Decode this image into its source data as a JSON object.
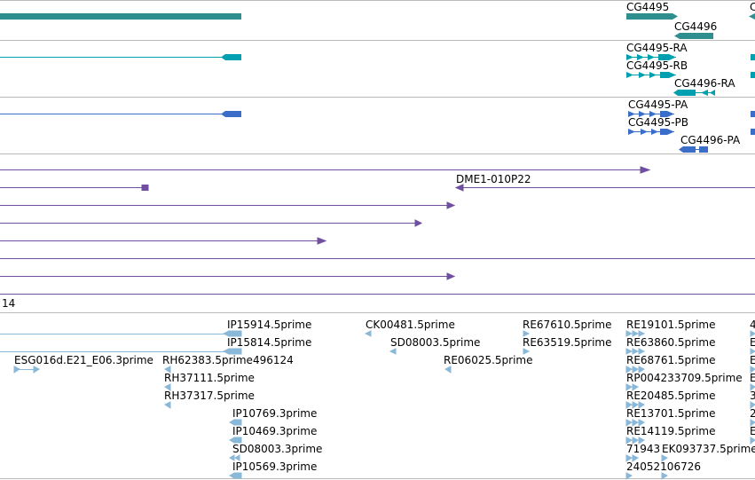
{
  "colors": {
    "background": "#ffffff",
    "divider": "#bbbbbb",
    "gene": "#2f8f8f",
    "transcript": "#00a0b0",
    "protein": "#3a6ec8",
    "clone": "#6f4fa0",
    "est": "#8ab8d8",
    "text": "#000000"
  },
  "tracks": {
    "gene_labels": [
      "CG4495",
      "CG4496",
      "C"
    ],
    "transcript_labels": [
      "CG4495-RA",
      "CG4495-RB",
      "CG4496-RA"
    ],
    "protein_labels": [
      "CG4495-PA",
      "CG4495-PB",
      "CG4496-PA"
    ],
    "clone_labels": [
      "DME1-010P22",
      "14"
    ],
    "est_labels": [
      "IP15914.5prime",
      "IP15814.5prime",
      "ESG016d.E21_E06.3prime",
      "RH62383.5prime",
      "496124",
      "RH37111.5prime",
      "RH37317.5prime",
      "IP10769.3prime",
      "IP10469.3prime",
      "SD08003.3prime",
      "IP10569.3prime",
      "CK00481.5prime",
      "SD08003.5prime",
      "RE67610.5prime",
      "RE63519.5prime",
      "RE06025.5prime",
      "RE19101.5prime",
      "RE63860.5prime",
      "RE68761.5prime",
      "RP004233709.5prime",
      "RE20485.5prime",
      "RE13701.5prime",
      "RE14119.5prime",
      "71943",
      "EK093737.5prime",
      "24052106726",
      "4",
      "E",
      "E",
      "E",
      "3",
      "2",
      "E"
    ]
  }
}
